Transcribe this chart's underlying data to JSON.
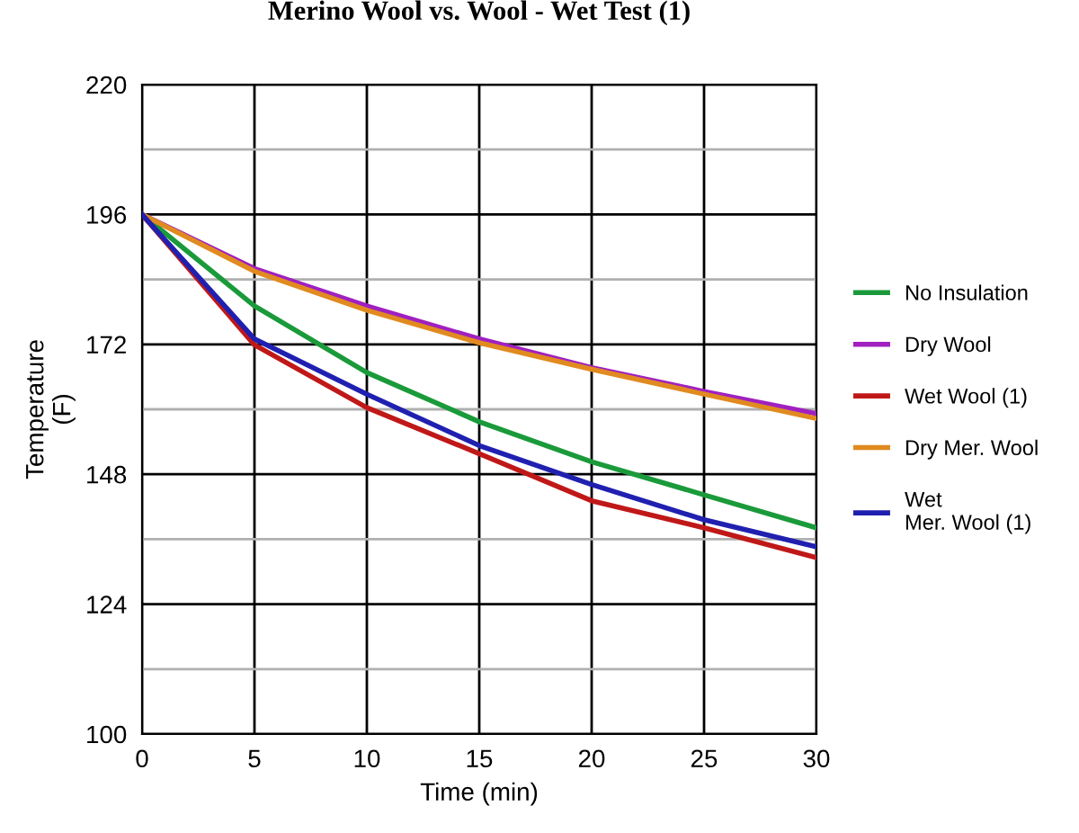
{
  "chart_data": {
    "type": "line",
    "title": "Merino Wool vs. Wool - Wet Test (1)",
    "xlabel": "Time (min)",
    "ylabel": "Temperature\n(F)",
    "x": [
      0,
      5,
      10,
      15,
      20,
      25,
      30
    ],
    "series": [
      {
        "name": "No Insulation",
        "color": "#1a9a3a",
        "values": [
          196,
          179.1,
          166.8,
          157.7,
          150.3,
          144.2,
          138.1
        ]
      },
      {
        "name": "Dry Wool",
        "color": "#a020c0",
        "values": [
          196,
          186,
          179.1,
          173,
          167.7,
          163.3,
          159.2
        ]
      },
      {
        "name": "Wet Wool (1)",
        "color": "#c01818",
        "values": [
          196,
          171.9,
          160.3,
          151.8,
          143.1,
          138.1,
          132.6
        ]
      },
      {
        "name": "Dry Mer. Wool",
        "color": "#e08a20",
        "values": [
          196,
          185.5,
          178.3,
          172.3,
          167.4,
          162.8,
          158.3
        ]
      },
      {
        "name": "Wet\nMer. Wool (1)",
        "color": "#2020b0",
        "values": [
          196,
          173,
          162.8,
          153.3,
          146.1,
          139.6,
          134.6
        ]
      }
    ],
    "xlim": [
      0,
      30
    ],
    "xticks": [
      0,
      5,
      10,
      15,
      20,
      25,
      30
    ],
    "ylim": [
      100,
      220
    ],
    "yticks": [
      100,
      {
        "value": 112,
        "label": null
      },
      124,
      {
        "value": 136,
        "label": null
      },
      148,
      {
        "value": 160,
        "label": null
      },
      172,
      {
        "value": 184,
        "label": null
      },
      196,
      {
        "value": 208,
        "label": null
      },
      220
    ],
    "grid": true,
    "legend": "right",
    "marker": "none",
    "line_style": "solid"
  }
}
